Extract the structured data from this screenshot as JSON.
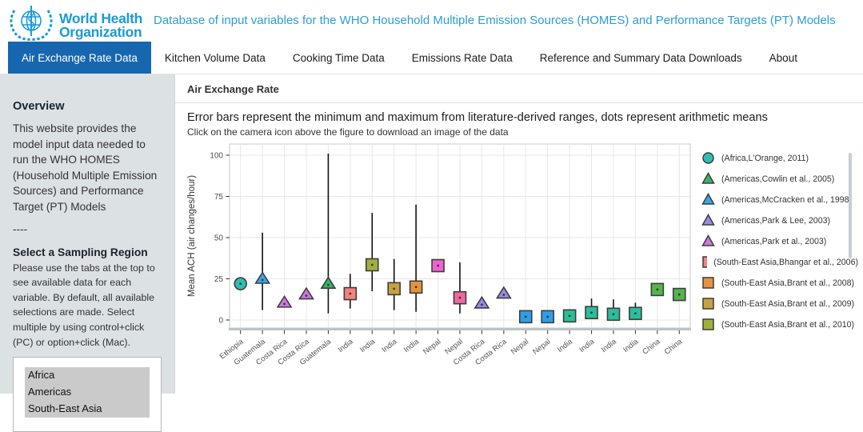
{
  "header": {
    "org_line1": "World Health",
    "org_line2": "Organization",
    "title": "Database of input variables for the WHO Household Multiple Emission Sources (HOMES) and Performance Targets (PT) Models"
  },
  "nav": {
    "tabs": [
      {
        "label": "Air Exchange Rate Data",
        "active": true
      },
      {
        "label": "Kitchen Volume Data",
        "active": false
      },
      {
        "label": "Cooking Time Data",
        "active": false
      },
      {
        "label": "Emissions Rate Data",
        "active": false
      },
      {
        "label": "Reference and Summary Data Downloads",
        "active": false
      },
      {
        "label": "About",
        "active": false
      }
    ]
  },
  "sidebar": {
    "overview_title": "Overview",
    "overview_text": "This website provides the model input data needed to run the WHO HOMES (Household Multiple Emission Sources) and Performance Target (PT) Models",
    "divider": "----",
    "region_title": "Select a Sampling Region",
    "region_help": "Please use the tabs at the top to see available data for each variable. By default, all available selections are made. Select multiple by using control+click (PC) or option+click (Mac).",
    "region_options": [
      {
        "label": "Africa",
        "selected": true
      },
      {
        "label": "Americas",
        "selected": true
      },
      {
        "label": "South-East Asia",
        "selected": true
      }
    ]
  },
  "main": {
    "panel_title": "Air Exchange Rate",
    "subtitle": "Error bars represent the minimum and maximum from literature-derived ranges, dots represent arithmetic means",
    "note": "Click on the camera icon above the figure to download an image of the data"
  },
  "chart_data": {
    "type": "scatter",
    "title": "",
    "xlabel": "",
    "ylabel": "Mean ACH (air changes/hour)",
    "ylim": [
      0,
      105
    ],
    "yticks": [
      0,
      25,
      50,
      75,
      100
    ],
    "grid": true,
    "legend_position": "right",
    "legend": [
      {
        "shape": "circle",
        "color": "#2fbdb3",
        "label": "(Africa,L'Orange, 2011)"
      },
      {
        "shape": "triangle",
        "color": "#38b468",
        "label": "(Americas,Cowlin et al., 2005)"
      },
      {
        "shape": "triangle",
        "color": "#3aa5e5",
        "label": "(Americas,McCracken et al., 1998)"
      },
      {
        "shape": "triangle",
        "color": "#998ae4",
        "label": "(Americas,Park & Lee, 2003)"
      },
      {
        "shape": "triangle",
        "color": "#cc77e2",
        "label": "(Americas,Park et al., 2003)"
      },
      {
        "shape": "square",
        "color": "#f5827d",
        "label": "(South-East Asia,Bhangar et al., 2006)"
      },
      {
        "shape": "square",
        "color": "#e39440",
        "label": "(South-East Asia,Brant et al., 2008)"
      },
      {
        "shape": "square",
        "color": "#c7a23e",
        "label": "(South-East Asia,Brant et al., 2009)"
      },
      {
        "shape": "square",
        "color": "#a1b03c",
        "label": "(South-East Asia,Brant et al., 2010)"
      }
    ],
    "points": [
      {
        "x": "Ethiopia",
        "shape": "circle",
        "color": "#2fbdb3",
        "mean": 22,
        "min": null,
        "max": null
      },
      {
        "x": "Guatemala",
        "shape": "triangle",
        "color": "#3aa5e5",
        "mean": 25,
        "min": 6,
        "max": 53
      },
      {
        "x": "Costa Rica",
        "shape": "triangle",
        "color": "#cc77e2",
        "mean": 10.5,
        "min": null,
        "max": null
      },
      {
        "x": "Costa Rica",
        "shape": "triangle",
        "color": "#cc77e2",
        "mean": 15.5,
        "min": null,
        "max": null
      },
      {
        "x": "Guatemala",
        "shape": "triangle",
        "color": "#38b468",
        "mean": 22,
        "min": 4,
        "max": 101
      },
      {
        "x": "India",
        "shape": "square",
        "color": "#f5827d",
        "mean": 16,
        "min": 7,
        "max": 28
      },
      {
        "x": "India",
        "shape": "square",
        "color": "#a1b03c",
        "mean": 33.5,
        "min": 17.5,
        "max": 65
      },
      {
        "x": "India",
        "shape": "square",
        "color": "#c7a23e",
        "mean": 19,
        "min": 6,
        "max": 37
      },
      {
        "x": "India",
        "shape": "square",
        "color": "#e39440",
        "mean": 20,
        "min": 5,
        "max": 70
      },
      {
        "x": "Nepal",
        "shape": "square",
        "color": "#f162d0",
        "mean": 33,
        "min": null,
        "max": null
      },
      {
        "x": "Nepal",
        "shape": "square",
        "color": "#f0689d",
        "mean": 13.5,
        "min": 4,
        "max": 35
      },
      {
        "x": "Costa Rica",
        "shape": "triangle",
        "color": "#998ae4",
        "mean": 10,
        "min": null,
        "max": null
      },
      {
        "x": "Costa Rica",
        "shape": "triangle",
        "color": "#998ae4",
        "mean": 16,
        "min": null,
        "max": null
      },
      {
        "x": "Nepal",
        "shape": "square",
        "color": "#2d9fe8",
        "mean": 2,
        "min": null,
        "max": null
      },
      {
        "x": "Nepal",
        "shape": "square",
        "color": "#2d9fe8",
        "mean": 2,
        "min": null,
        "max": null
      },
      {
        "x": "India",
        "shape": "square",
        "color": "#2abf97",
        "mean": 2.5,
        "min": 1,
        "max": 6.5
      },
      {
        "x": "India",
        "shape": "square",
        "color": "#2abf97",
        "mean": 4.5,
        "min": 1.5,
        "max": 13
      },
      {
        "x": "India",
        "shape": "square",
        "color": "#2abf97",
        "mean": 3.5,
        "min": 1,
        "max": 12.5
      },
      {
        "x": "India",
        "shape": "square",
        "color": "#2abf97",
        "mean": 4,
        "min": 0.5,
        "max": 10.5
      },
      {
        "x": "China",
        "shape": "square",
        "color": "#56b44f",
        "mean": 18.5,
        "min": null,
        "max": null
      },
      {
        "x": "China",
        "shape": "square",
        "color": "#56b44f",
        "mean": 15.5,
        "min": null,
        "max": null
      }
    ],
    "colors": {
      "marker_stroke": "#3d3d3d",
      "error_bar": "#111111",
      "gridline": "#e7e7e7",
      "panel_border": "#c9c9c9",
      "axis_text": "#4d4d4d"
    }
  }
}
